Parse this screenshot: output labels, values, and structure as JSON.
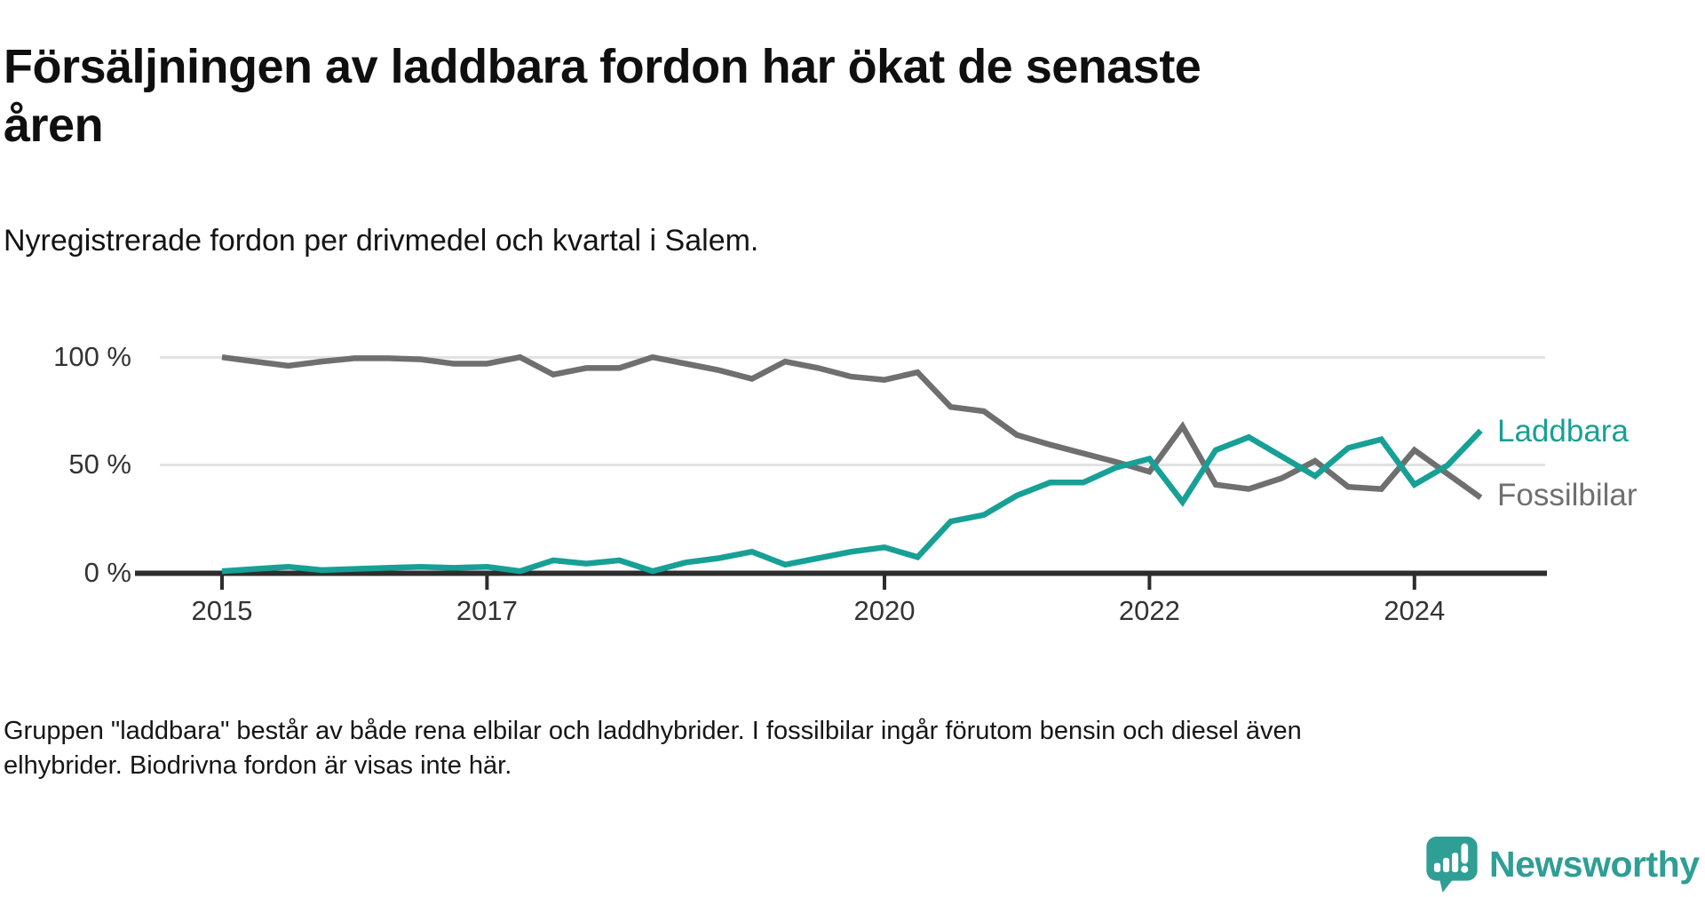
{
  "title": {
    "line1": "Försäljningen av laddbara fordon har ökat de senaste",
    "line2": "åren"
  },
  "subtitle": "Nyregistrerade fordon per drivmedel och kvartal i Salem.",
  "footer": {
    "lines": [
      "Gruppen \"laddbara\" består av både rena elbilar och laddhybrider. I fossilbilar ingår förutom bensin och diesel även",
      "elhybrider. Biodrivna fordon är visas inte här."
    ]
  },
  "logo": {
    "text": "Newsworthy",
    "icon": "speech-bubble-bar-chart-icon",
    "color": "#2f9e94"
  },
  "colors": {
    "laddbara": "#17a095",
    "fossilbilar": "#6f6f6f",
    "axis": "#2d2d2d",
    "grid": "#e2e2e2",
    "tick_text": "#333333"
  },
  "chart_data": {
    "type": "line",
    "unit": "% of newly registered vehicles per quarter",
    "grid": "horizontal-only",
    "legend_position": "right-end-of-lines",
    "ylim": [
      0,
      100
    ],
    "quarters": [
      "2015 Q1",
      "2015 Q2",
      "2015 Q3",
      "2015 Q4",
      "2016 Q1",
      "2016 Q2",
      "2016 Q3",
      "2016 Q4",
      "2017 Q1",
      "2017 Q2",
      "2017 Q3",
      "2017 Q4",
      "2018 Q1",
      "2018 Q2",
      "2018 Q3",
      "2018 Q4",
      "2019 Q1",
      "2019 Q2",
      "2019 Q3",
      "2019 Q4",
      "2020 Q1",
      "2020 Q2",
      "2020 Q3",
      "2020 Q4",
      "2021 Q1",
      "2021 Q2",
      "2021 Q3",
      "2021 Q4",
      "2022 Q1",
      "2022 Q2",
      "2022 Q3",
      "2022 Q4",
      "2023 Q1",
      "2023 Q2",
      "2023 Q3",
      "2023 Q4",
      "2024 Q1",
      "2024 Q2",
      "2024 Q3"
    ],
    "series": [
      {
        "name": "Fossilbilar",
        "color": "#6f6f6f",
        "values": [
          100,
          98,
          96,
          98,
          99.5,
          99.5,
          99,
          97,
          97,
          100,
          92,
          95,
          95,
          100,
          97,
          94,
          90,
          98,
          95,
          91,
          89.5,
          93,
          77,
          75,
          64,
          59.5,
          55.5,
          51.5,
          47,
          68,
          41,
          39,
          44,
          52,
          40,
          39,
          57,
          46,
          35
        ]
      },
      {
        "name": "Laddbara",
        "color": "#17a095",
        "values": [
          1,
          2,
          3,
          1.5,
          2,
          2.5,
          3,
          2.5,
          3,
          1,
          6,
          4.5,
          6,
          1,
          5,
          7,
          10,
          4,
          7,
          10,
          12,
          7.5,
          24,
          27,
          36,
          42,
          42,
          49,
          53,
          33,
          57,
          63,
          54,
          45,
          58,
          62,
          41,
          50,
          66
        ]
      }
    ],
    "yticks": [
      {
        "label": "100 %",
        "value": 100
      },
      {
        "label": "50 %",
        "value": 50
      },
      {
        "label": "0 %",
        "value": 0
      }
    ],
    "xticks": [
      {
        "label": "2015",
        "quarter_index": 0
      },
      {
        "label": "2017",
        "quarter_index": 8
      },
      {
        "label": "2020",
        "quarter_index": 20
      },
      {
        "label": "2022",
        "quarter_index": 28
      },
      {
        "label": "2024",
        "quarter_index": 36
      }
    ]
  }
}
